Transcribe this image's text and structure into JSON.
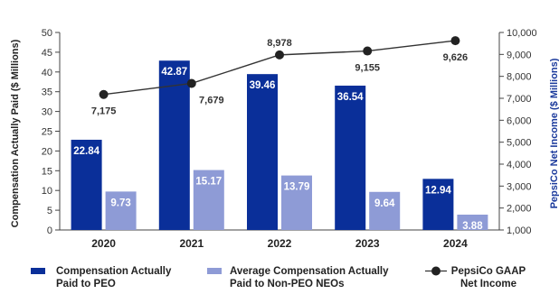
{
  "chart_data": {
    "type": "bar",
    "categories": [
      "2020",
      "2021",
      "2022",
      "2023",
      "2024"
    ],
    "series": [
      {
        "name": "Compensation Actually Paid to PEO",
        "type": "bar",
        "axis": "left",
        "color": "#0a2f99",
        "values": [
          22.84,
          42.87,
          39.46,
          36.54,
          12.94
        ]
      },
      {
        "name": "Average Compensation Actually Paid to Non-PEO NEOs",
        "type": "bar",
        "axis": "left",
        "color": "#8e9bd6",
        "values": [
          9.73,
          15.17,
          13.79,
          9.64,
          3.88
        ]
      },
      {
        "name": "PepsiCo GAAP Net Income",
        "type": "line",
        "axis": "right",
        "color": "#333333",
        "marker_color": "#222222",
        "values": [
          7175,
          7679,
          8978,
          9155,
          9626
        ]
      }
    ],
    "bar_labels": [
      [
        "22.84",
        "42.87",
        "39.46",
        "36.54",
        "12.94"
      ],
      [
        "9.73",
        "15.17",
        "13.79",
        "9.64",
        "3.88"
      ]
    ],
    "line_labels": [
      "7,175",
      "7,679",
      "8,978",
      "9,155",
      "9,626"
    ],
    "ylabel": "Compensation Actually Paid ($ Millions)",
    "y2label": "PepsiCo Net Income ($ Millions)",
    "ylim": [
      0,
      50
    ],
    "y2lim": [
      1000,
      10000
    ],
    "yticks": [
      "0",
      "5",
      "10",
      "15",
      "20",
      "25",
      "30",
      "35",
      "40",
      "45",
      "50"
    ],
    "y2ticks": [
      "1,000",
      "2,000",
      "3,000",
      "4,000",
      "5,000",
      "6,000",
      "7,000",
      "8,000",
      "9,000",
      "10,000"
    ],
    "grid": false,
    "legend_position": "bottom",
    "legend": [
      {
        "line1": "Compensation Actually",
        "line2": "Paid to PEO"
      },
      {
        "line1": "Average Compensation Actually",
        "line2": "Paid to Non-PEO NEOs"
      },
      {
        "line1": "PepsiCo GAAP",
        "line2": "Net Income"
      }
    ],
    "colors": {
      "y2label": "#1b3a9c",
      "axis": "#444444"
    }
  }
}
